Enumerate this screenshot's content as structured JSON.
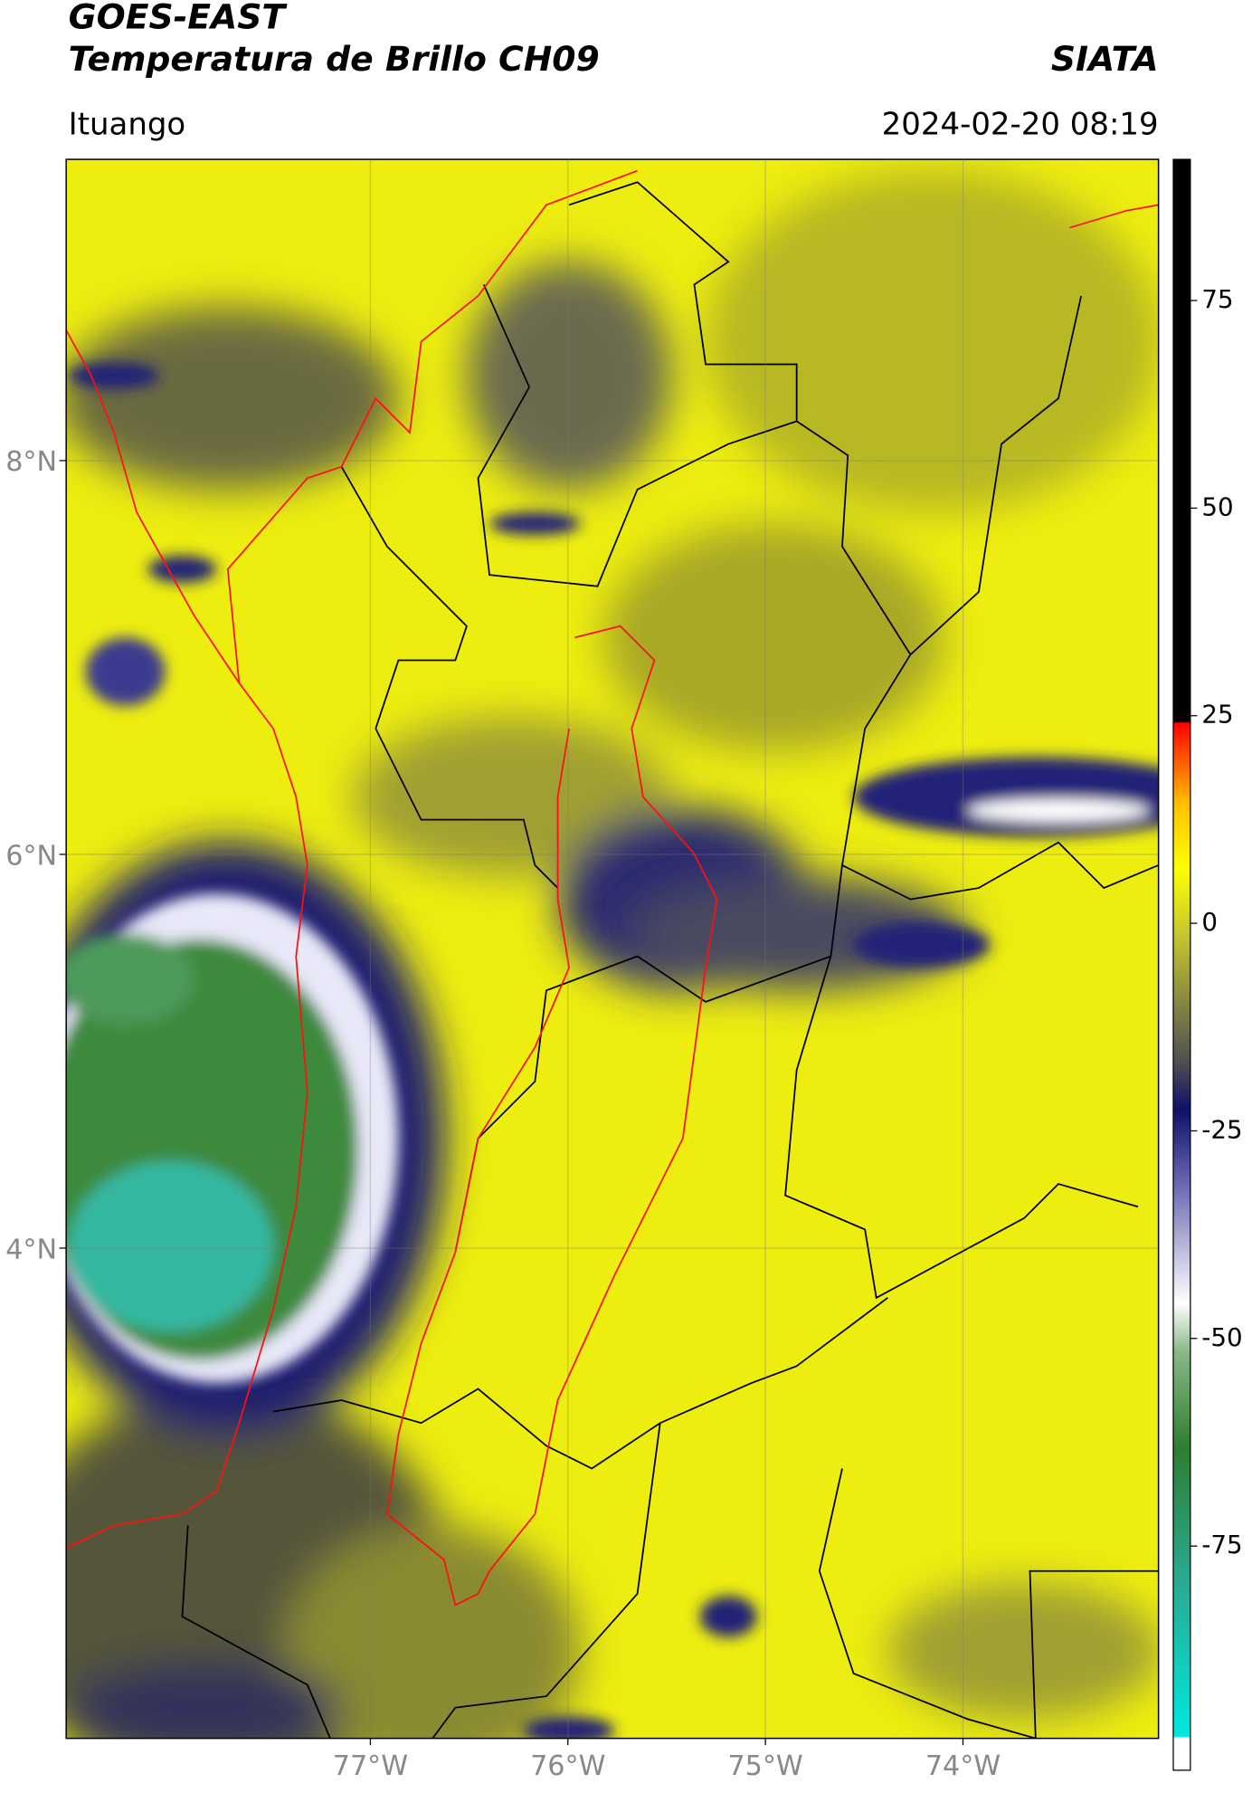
{
  "header": {
    "title": "GOES-EAST",
    "subtitle": "Temperatura de Brillo CH09",
    "source": "SIATA",
    "location": "Ituango",
    "datetime": "2024-02-20 08:19"
  },
  "map": {
    "xlim": [
      -78.54,
      -73.01
    ],
    "ylim": [
      1.51,
      9.53
    ],
    "xticks": [
      {
        "value": -77,
        "label": "77°W"
      },
      {
        "value": -76,
        "label": "76°W"
      },
      {
        "value": -75,
        "label": "75°W"
      },
      {
        "value": -74,
        "label": "74°W"
      }
    ],
    "yticks": [
      {
        "value": 8,
        "label": "8°N"
      },
      {
        "value": 6,
        "label": "6°N"
      },
      {
        "value": 4,
        "label": "4°N"
      }
    ],
    "colorbar": {
      "clim": [
        -102,
        92
      ],
      "ticks": [
        75,
        50,
        25,
        0,
        -25,
        -50,
        -75
      ]
    }
  }
}
